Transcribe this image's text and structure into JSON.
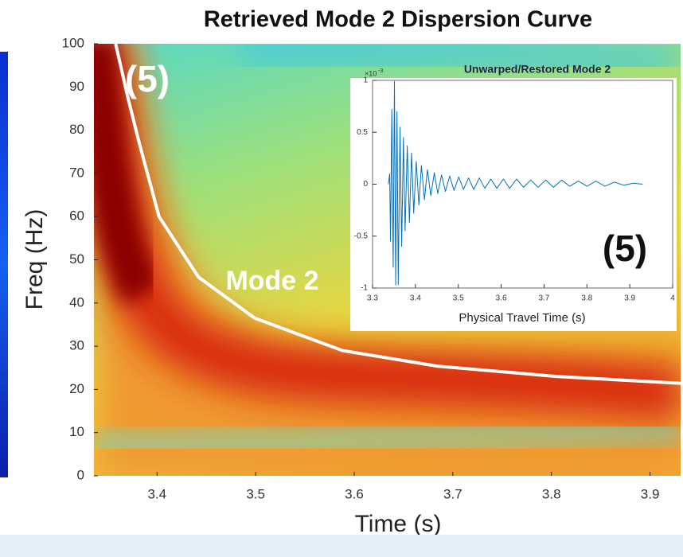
{
  "chart_data": [
    {
      "type": "line",
      "title": "Retrieved Mode 2 Dispersion Curve",
      "x_label": "Time (s)",
      "y_label": "Freq (Hz)",
      "xlim": [
        3.336,
        3.931
      ],
      "ylim": [
        0,
        100
      ],
      "xticks": [
        3.4,
        3.5,
        3.6,
        3.7,
        3.8,
        3.9
      ],
      "yticks": [
        0,
        10,
        20,
        30,
        40,
        50,
        60,
        70,
        80,
        90,
        100
      ],
      "x": [
        3.358,
        3.37,
        3.382,
        3.402,
        3.442,
        3.499,
        3.588,
        3.684,
        3.805,
        3.931
      ],
      "values": [
        100,
        88,
        77,
        60,
        46,
        36.5,
        29,
        25.4,
        23,
        21.4
      ],
      "color": "#ffffff",
      "annotations": [
        "(5)",
        "Mode 2"
      ]
    },
    {
      "type": "line",
      "title": "Unwarped/Restored Mode 2",
      "x_label": "Physical Travel Time (s)",
      "xlim": [
        3.3,
        4
      ],
      "ylim": [
        -1,
        1
      ],
      "xticks": [
        3.3,
        3.4,
        3.5,
        3.6,
        3.7,
        3.8,
        3.9,
        4
      ],
      "yticks": [
        -1,
        -0.5,
        0,
        0.5,
        1
      ],
      "y_multiplier_base": "×10",
      "y_multiplier_exponent": "-3",
      "x": [
        3.337,
        3.34,
        3.342,
        3.345,
        3.348,
        3.351,
        3.354,
        3.357,
        3.36,
        3.364,
        3.368,
        3.372,
        3.376,
        3.381,
        3.386,
        3.391,
        3.396,
        3.402,
        3.408,
        3.414,
        3.421,
        3.428,
        3.436,
        3.444,
        3.452,
        3.461,
        3.47,
        3.48,
        3.49,
        3.501,
        3.512,
        3.524,
        3.536,
        3.549,
        3.562,
        3.576,
        3.59,
        3.605,
        3.62,
        3.636,
        3.652,
        3.669,
        3.686,
        3.704,
        3.722,
        3.741,
        3.76,
        3.78,
        3.8,
        3.821,
        3.842,
        3.864,
        3.886,
        3.908,
        3.93
      ],
      "values": [
        0,
        0.1,
        -0.55,
        0.72,
        -0.8,
        0.99,
        -0.97,
        0.7,
        -0.97,
        0.55,
        -0.6,
        0.45,
        -0.45,
        0.37,
        -0.37,
        0.3,
        -0.28,
        0.22,
        -0.2,
        0.18,
        -0.15,
        0.14,
        -0.11,
        0.11,
        -0.09,
        0.09,
        -0.07,
        0.08,
        -0.06,
        0.07,
        -0.05,
        0.06,
        -0.05,
        0.06,
        -0.04,
        0.05,
        -0.04,
        0.05,
        -0.04,
        0.05,
        -0.03,
        0.04,
        -0.03,
        0.04,
        -0.03,
        0.04,
        -0.02,
        0.03,
        -0.02,
        0.03,
        -0.02,
        0.02,
        -0.01,
        0.01,
        0
      ],
      "color": "#0072bd",
      "annotations": [
        "(5)"
      ]
    }
  ]
}
